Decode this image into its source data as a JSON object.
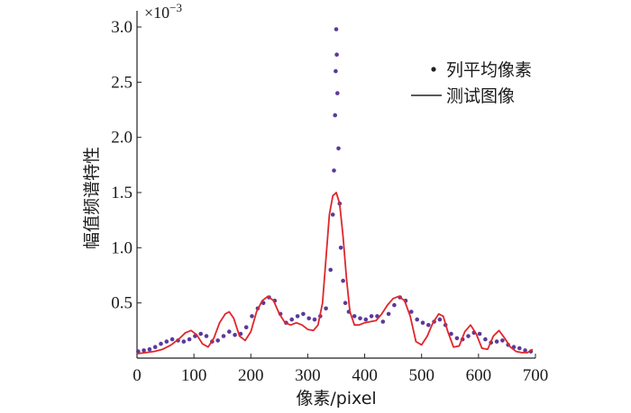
{
  "chart_data": {
    "type": "line",
    "xlabel": "像素/pixel",
    "ylabel": "幅值频谱特性",
    "y_multiplier_base": "×10",
    "y_multiplier_exp": "−3",
    "xlim": [
      0,
      700
    ],
    "ylim": [
      0,
      3.0
    ],
    "x_ticks": [
      {
        "value": 0,
        "label": "0"
      },
      {
        "value": 100,
        "label": "100"
      },
      {
        "value": 200,
        "label": "200"
      },
      {
        "value": 300,
        "label": "300"
      },
      {
        "value": 400,
        "label": "400"
      },
      {
        "value": 500,
        "label": "500"
      },
      {
        "value": 600,
        "label": "600"
      },
      {
        "value": 700,
        "label": "700"
      }
    ],
    "y_ticks": [
      {
        "value": 0.5,
        "label": "0.5"
      },
      {
        "value": 1.0,
        "label": "1.0"
      },
      {
        "value": 1.5,
        "label": "1.5"
      },
      {
        "value": 2.0,
        "label": "2.0"
      },
      {
        "value": 2.5,
        "label": "2.5"
      },
      {
        "value": 3.0,
        "label": "3.0"
      }
    ],
    "grid": false,
    "legend_position": "top-right",
    "series": [
      {
        "name": "列平均像素",
        "kind": "scatter",
        "color": "#5b3a9a",
        "x": [
          2,
          12,
          22,
          32,
          42,
          52,
          62,
          72,
          82,
          92,
          102,
          112,
          122,
          132,
          142,
          152,
          162,
          172,
          182,
          192,
          202,
          212,
          222,
          232,
          242,
          252,
          262,
          272,
          282,
          292,
          302,
          312,
          322,
          332,
          340,
          344,
          346,
          348,
          349,
          350,
          351,
          352,
          354,
          356,
          358,
          362,
          366,
          372,
          382,
          392,
          402,
          412,
          422,
          432,
          442,
          452,
          462,
          472,
          482,
          492,
          502,
          512,
          522,
          532,
          542,
          552,
          562,
          572,
          582,
          592,
          602,
          612,
          622,
          632,
          642,
          652,
          662,
          672,
          682,
          692
        ],
        "values": [
          0.06,
          0.07,
          0.08,
          0.1,
          0.13,
          0.15,
          0.17,
          0.16,
          0.15,
          0.17,
          0.2,
          0.22,
          0.2,
          0.15,
          0.16,
          0.2,
          0.24,
          0.21,
          0.22,
          0.28,
          0.38,
          0.45,
          0.5,
          0.55,
          0.52,
          0.4,
          0.32,
          0.35,
          0.38,
          0.4,
          0.36,
          0.35,
          0.38,
          0.45,
          0.8,
          1.3,
          1.7,
          2.2,
          2.6,
          2.98,
          2.75,
          2.4,
          1.9,
          1.4,
          1.0,
          0.7,
          0.5,
          0.42,
          0.38,
          0.36,
          0.35,
          0.38,
          0.38,
          0.33,
          0.4,
          0.48,
          0.55,
          0.52,
          0.42,
          0.35,
          0.32,
          0.3,
          0.33,
          0.35,
          0.3,
          0.22,
          0.18,
          0.17,
          0.2,
          0.23,
          0.22,
          0.17,
          0.14,
          0.15,
          0.16,
          0.12,
          0.1,
          0.09,
          0.07,
          0.06
        ]
      },
      {
        "name": "测试图像",
        "kind": "line",
        "color": "#e0262b",
        "x": [
          0,
          15,
          30,
          45,
          60,
          75,
          85,
          95,
          105,
          115,
          125,
          135,
          145,
          155,
          162,
          170,
          180,
          190,
          200,
          210,
          220,
          230,
          240,
          250,
          260,
          270,
          280,
          290,
          300,
          310,
          318,
          326,
          332,
          338,
          344,
          350,
          356,
          362,
          368,
          374,
          382,
          390,
          400,
          410,
          420,
          430,
          440,
          450,
          460,
          470,
          480,
          490,
          500,
          510,
          520,
          530,
          538,
          546,
          556,
          566,
          576,
          586,
          596,
          606,
          616,
          626,
          636,
          646,
          656,
          666,
          676,
          686,
          695
        ],
        "values": [
          0.04,
          0.05,
          0.06,
          0.08,
          0.12,
          0.18,
          0.23,
          0.25,
          0.21,
          0.13,
          0.1,
          0.18,
          0.32,
          0.4,
          0.42,
          0.36,
          0.2,
          0.16,
          0.24,
          0.42,
          0.52,
          0.56,
          0.52,
          0.4,
          0.32,
          0.3,
          0.32,
          0.3,
          0.26,
          0.25,
          0.3,
          0.5,
          0.9,
          1.3,
          1.47,
          1.5,
          1.4,
          1.1,
          0.72,
          0.42,
          0.3,
          0.3,
          0.32,
          0.33,
          0.34,
          0.4,
          0.48,
          0.54,
          0.56,
          0.52,
          0.38,
          0.15,
          0.12,
          0.2,
          0.32,
          0.4,
          0.38,
          0.24,
          0.1,
          0.11,
          0.24,
          0.3,
          0.22,
          0.09,
          0.08,
          0.2,
          0.25,
          0.18,
          0.1,
          0.06,
          0.05,
          0.05,
          0.08
        ]
      }
    ]
  }
}
